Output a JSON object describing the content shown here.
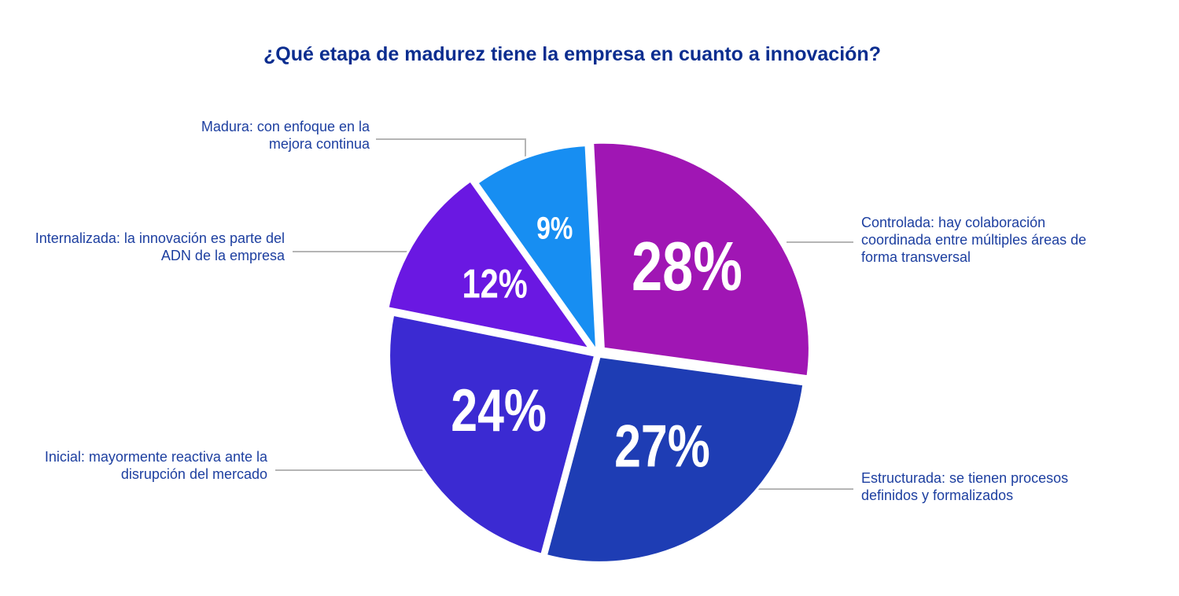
{
  "chart_data": {
    "type": "pie",
    "title": "¿Qué etapa de madurez tiene la empresa en cuanto a innovación?",
    "categories": [
      "Controlada: hay colaboración coordinada entre múltiples áreas de forma transversal",
      "Estructurada: se tienen procesos definidos y formalizados",
      "Inicial: mayormente reactiva ante la disrupción del mercado",
      "Internalizada: la innovación es parte del ADN de la empresa",
      "Madura: con enfoque en la mejora continua"
    ],
    "values": [
      28,
      27,
      24,
      12,
      9
    ],
    "value_labels": [
      "28%",
      "27%",
      "24%",
      "12%",
      "9%"
    ],
    "colors": [
      "#a016b4",
      "#1e3db4",
      "#3b2ad2",
      "#6a18e2",
      "#178ef2"
    ]
  }
}
